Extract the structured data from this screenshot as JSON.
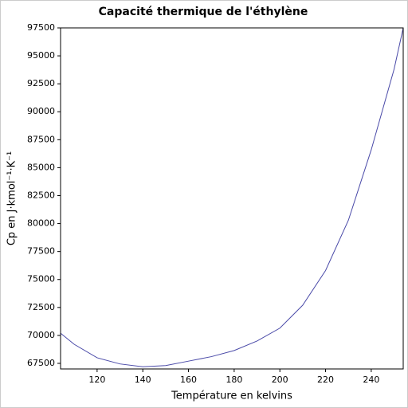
{
  "chart_data": {
    "type": "line",
    "title": "Capacité thermique de l'éthylène",
    "xlabel": "Température en kelvins",
    "ylabel": "Cp en J·kmol⁻¹·K⁻¹",
    "x": [
      104,
      110,
      120,
      130,
      140,
      150,
      160,
      170,
      180,
      190,
      200,
      210,
      220,
      230,
      240,
      250,
      254
    ],
    "series": [
      {
        "color": "#4a4aa8",
        "values": [
          70200,
          69200,
          68000,
          67450,
          67200,
          67300,
          67700,
          68100,
          68650,
          69500,
          70650,
          72700,
          75800,
          80300,
          86600,
          93800,
          97500
        ]
      }
    ],
    "xlim": [
      104,
      254
    ],
    "ylim": [
      67000,
      97500
    ],
    "xticks": [
      120,
      140,
      160,
      180,
      200,
      220,
      240
    ],
    "yticks": [
      67500,
      70000,
      72500,
      75000,
      77500,
      80000,
      82500,
      85000,
      87500,
      90000,
      92500,
      95000,
      97500
    ]
  }
}
